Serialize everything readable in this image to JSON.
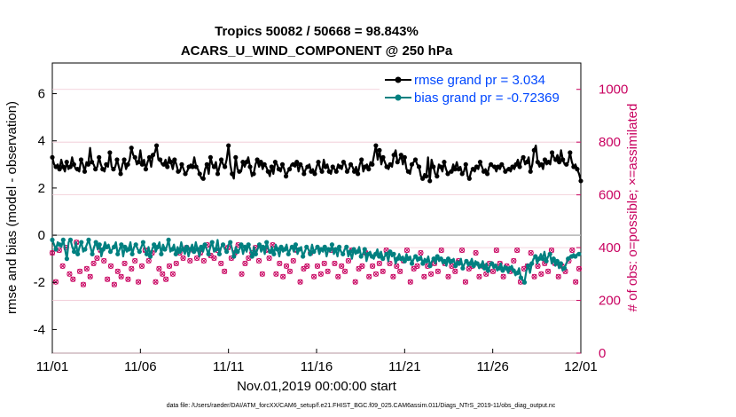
{
  "chart_data": {
    "type": "line",
    "title_line1": "Tropics 50082 / 50668 = 98.843%",
    "title_line2": "ACARS_U_WIND_COMPONENT @ 250 hPa",
    "xlabel": "Nov.01,2019 00:00:00 start",
    "ylabel_left": "rmse and bias (model - observation)",
    "ylabel_right": "# of obs: o=possible; ×=assimilated",
    "footnote": "data file: /Users/raeder/DAI/ATM_forcXX/CAM6_setup/f.e21.FHIST_BGC.f09_025.CAM6assim.011/Diags_NTrS_2019-11/obs_diag_output.nc",
    "x_ticks": [
      "11/01",
      "11/06",
      "11/11",
      "11/16",
      "11/21",
      "11/26",
      "12/01"
    ],
    "x_range_days": [
      0,
      30
    ],
    "y_left_ticks": [
      "-4",
      "-2",
      "0",
      "2",
      "4",
      "6"
    ],
    "y_left_range": [
      -5,
      7.3
    ],
    "y_right_ticks": [
      "0",
      "200",
      "400",
      "600",
      "800",
      "1000"
    ],
    "y_right_range": [
      0,
      1100
    ],
    "colors": {
      "rmse": "#000000",
      "bias": "#008080",
      "obs": "#c8005f",
      "legend_text": "#0047ff",
      "zero_line": "#b4b4b4",
      "grid": "#f0c8d4"
    },
    "series": [
      {
        "name": "rmse grand pr = 3.034",
        "key": "rmse",
        "values": [
          3.3,
          3.0,
          2.9,
          3.0,
          2.8,
          3.2,
          2.9,
          2.7,
          3.1,
          2.8,
          2.9,
          3.3,
          3.0,
          2.8,
          2.8,
          2.7,
          3.2,
          3.0,
          2.7,
          3.1,
          3.0,
          3.7,
          3.1,
          3.0,
          2.8,
          2.9,
          3.3,
          3.0,
          2.8,
          2.7,
          3.0,
          2.9,
          3.5,
          2.9,
          2.8,
          2.9,
          3.2,
          2.9,
          2.6,
          3.0,
          3.2,
          2.8,
          3.0,
          3.2,
          3.7,
          3.4,
          3.3,
          3.0,
          3.1,
          3.6,
          3.0,
          3.2,
          2.8,
          3.1,
          3.3,
          2.9,
          3.4,
          3.5,
          3.8,
          3.2,
          3.2,
          3.0,
          3.0,
          3.2,
          2.9,
          3.3,
          3.1,
          2.8,
          3.2,
          3.0,
          2.7,
          2.7,
          3.0,
          2.8,
          2.6,
          2.7,
          2.9,
          3.0,
          2.9,
          3.3,
          2.9,
          2.8,
          2.6,
          2.4,
          2.4,
          2.8,
          3.0,
          2.6,
          3.3,
          3.0,
          2.9,
          3.1,
          2.6,
          2.9,
          3.2,
          3.0,
          2.9,
          3.2,
          3.8,
          3.0,
          2.6,
          2.4,
          3.3,
          2.8,
          2.7,
          2.7,
          3.1,
          2.9,
          3.1,
          3.3,
          2.9,
          2.5,
          2.6,
          3.0,
          3.2,
          2.9,
          3.1,
          2.8,
          3.0,
          2.9,
          2.7,
          2.5,
          2.9,
          2.6,
          3.1,
          3.0,
          2.8,
          2.7,
          3.0,
          2.8,
          2.5,
          2.7,
          2.8,
          3.0,
          3.0,
          2.9,
          3.1,
          2.7,
          3.0,
          2.9,
          2.6,
          2.8,
          2.9,
          3.0,
          2.7,
          2.8,
          2.6,
          2.9,
          3.1,
          2.8,
          2.7,
          3.2,
          2.9,
          3.0,
          2.7,
          2.6,
          2.9,
          2.8,
          2.7,
          3.0,
          2.9,
          2.8,
          3.1,
          3.0,
          2.7,
          2.8,
          3.0,
          2.9,
          2.7,
          2.9,
          2.6,
          3.0,
          3.2,
          2.7,
          2.9,
          3.0,
          2.8,
          3.1,
          3.0,
          3.4,
          3.8,
          3.2,
          3.6,
          3.0,
          3.3,
          3.1,
          2.9,
          2.8,
          3.0,
          2.9,
          3.4,
          3.6,
          3.1,
          3.2,
          3.4,
          3.0,
          3.3,
          2.8,
          2.7,
          2.6,
          3.0,
          3.1,
          3.2,
          3.0,
          2.9,
          2.5,
          2.4,
          2.6,
          2.5,
          3.3,
          2.3,
          3.2,
          2.9,
          2.6,
          2.5,
          3.0,
          2.9,
          2.7,
          3.1,
          2.8,
          2.6,
          2.7,
          2.7,
          3.0,
          2.8,
          3.1,
          2.8,
          2.9,
          2.6,
          2.7,
          3.0,
          2.5,
          2.4,
          2.7,
          2.8,
          2.7,
          2.9,
          2.8,
          3.1,
          2.9,
          2.7,
          2.8,
          2.6,
          2.9,
          3.0,
          2.9,
          2.9,
          2.7,
          2.9,
          2.8,
          3.0,
          2.9,
          2.7,
          2.8,
          2.8,
          2.7,
          2.9,
          2.8,
          3.0,
          3.2,
          2.9,
          3.2,
          3.3,
          3.0,
          3.1,
          3.3,
          2.7,
          3.0,
          3.6,
          3.8,
          3.1,
          2.9,
          3.0,
          2.8,
          3.2,
          3.0,
          3.1,
          3.0,
          3.5,
          3.3,
          3.2,
          3.4,
          3.1,
          3.6,
          3.2,
          3.0,
          3.0,
          3.1,
          3.5,
          3.1,
          2.9,
          3.0,
          2.8,
          2.6,
          2.3
        ]
      },
      {
        "name": "bias grand pr = -0.72369",
        "key": "bias",
        "values": [
          -0.2,
          -0.4,
          -0.6,
          -0.3,
          -0.4,
          -0.5,
          -0.2,
          -0.6,
          -1.0,
          -0.3,
          -0.2,
          -0.5,
          -0.7,
          -0.3,
          -0.8,
          -0.5,
          -0.3,
          -0.7,
          -0.6,
          -0.4,
          -0.2,
          -0.5,
          -0.8,
          -0.5,
          -0.3,
          -0.6,
          -0.4,
          -0.9,
          -0.6,
          -0.3,
          -0.5,
          -0.4,
          -0.7,
          -0.6,
          -0.5,
          -0.3,
          -0.8,
          -0.6,
          -0.4,
          -0.9,
          -0.5,
          -0.7,
          -0.6,
          -0.3,
          -0.8,
          -0.5,
          -0.4,
          -0.6,
          -0.7,
          -0.5,
          -0.3,
          -0.6,
          -0.8,
          -0.5,
          -0.9,
          -0.6,
          -0.4,
          -0.7,
          -0.5,
          -0.3,
          -0.8,
          -0.4,
          -0.6,
          -0.5,
          -0.2,
          -0.7,
          -0.6,
          -0.4,
          -0.8,
          -0.5,
          -0.7,
          -0.3,
          -0.6,
          -0.8,
          -0.5,
          -0.9,
          -0.6,
          -0.4,
          -0.7,
          -0.3,
          -0.6,
          -0.9,
          -0.5,
          -0.7,
          -0.4,
          -0.6,
          -0.8,
          -0.5,
          -0.3,
          -0.7,
          -0.6,
          -0.2,
          -0.8,
          -0.5,
          -0.4,
          -0.6,
          -0.7,
          -0.4,
          -0.3,
          -0.6,
          -0.9,
          -0.5,
          -0.7,
          -0.6,
          -0.4,
          -0.8,
          -0.5,
          -0.7,
          -0.4,
          -0.6,
          -0.9,
          -0.5,
          -0.8,
          -0.6,
          -0.4,
          -0.7,
          -0.5,
          -0.8,
          -0.3,
          -0.6,
          -0.7,
          -0.5,
          -0.8,
          -0.4,
          -0.6,
          -0.9,
          -0.5,
          -0.7,
          -0.6,
          -0.4,
          -0.8,
          -0.6,
          -0.5,
          -0.7,
          -0.4,
          -0.8,
          -0.6,
          -0.5,
          -0.9,
          -0.7,
          -0.5,
          -0.6,
          -0.8,
          -0.4,
          -0.7,
          -0.6,
          -0.5,
          -0.8,
          -0.6,
          -0.7,
          -0.5,
          -0.9,
          -0.6,
          -0.7,
          -0.4,
          -0.8,
          -0.6,
          -0.9,
          -0.5,
          -0.7,
          -0.8,
          -0.6,
          -0.5,
          -0.9,
          -0.7,
          -1.0,
          -0.6,
          -0.8,
          -0.7,
          -0.5,
          -0.9,
          -0.8,
          -0.6,
          -1.1,
          -0.8,
          -0.7,
          -0.9,
          -1.0,
          -0.8,
          -0.6,
          -0.9,
          -0.7,
          -1.0,
          -0.9,
          -0.8,
          -1.1,
          -0.7,
          -0.9,
          -0.8,
          -1.2,
          -1.0,
          -0.8,
          -1.0,
          -0.9,
          -1.1,
          -0.8,
          -1.0,
          -0.9,
          -1.2,
          -1.0,
          -0.9,
          -1.1,
          -1.0,
          -0.9,
          -1.2,
          -1.0,
          -1.1,
          -0.9,
          -1.3,
          -1.1,
          -1.0,
          -1.2,
          -0.9,
          -1.1,
          -1.0,
          -1.2,
          -1.1,
          -1.3,
          -1.0,
          -1.2,
          -1.1,
          -1.0,
          -1.3,
          -1.1,
          -1.2,
          -1.0,
          -1.4,
          -1.2,
          -1.1,
          -1.3,
          -1.2,
          -1.0,
          -1.3,
          -1.1,
          -1.2,
          -1.4,
          -1.3,
          -1.1,
          -1.4,
          -1.2,
          -1.5,
          -1.3,
          -1.2,
          -1.4,
          -1.3,
          -1.5,
          -1.4,
          -1.2,
          -1.5,
          -1.3,
          -1.4,
          -1.6,
          -1.4,
          -1.3,
          -1.5,
          -1.7,
          -1.6,
          -1.4,
          -1.8,
          -1.9,
          -2.0,
          -1.5,
          -1.3,
          -1.6,
          -1.2,
          -1.0,
          -0.9,
          -1.2,
          -1.0,
          -0.8,
          -1.0,
          -0.7,
          -1.1,
          -0.9,
          -0.8,
          -1.2,
          -1.0,
          -1.3,
          -1.1,
          -1.4,
          -1.2,
          -1.5,
          -1.4,
          -1.2,
          -1.0,
          -0.9,
          -0.9,
          -0.8,
          -0.9,
          -0.8,
          -0.8,
          -0.8
        ]
      },
      {
        "name": "# of obs possible",
        "key": "obs",
        "values": [
          380,
          410,
          270,
          350,
          390,
          360,
          330,
          250,
          400,
          370,
          300,
          340,
          280,
          360,
          420,
          350,
          310,
          390,
          260,
          370,
          320,
          400,
          290,
          380,
          340,
          270,
          360,
          310,
          390,
          300,
          350,
          420,
          280,
          370,
          330,
          400,
          260,
          350,
          310,
          390,
          290,
          370,
          340,
          400,
          280,
          360,
          320,
          380,
          350,
          300,
          270,
          410,
          330,
          360,
          390,
          290,
          350,
          310,
          380,
          340,
          270,
          400,
          320,
          360,
          300,
          390,
          280,
          350,
          330,
          410,
          300,
          370,
          340,
          260,
          380,
          310,
          360,
          290,
          400,
          330,
          350,
          310,
          390,
          270,
          360,
          340,
          380,
          300,
          350,
          320,
          410,
          290,
          370,
          330,
          360,
          300,
          390,
          280,
          340,
          370,
          310,
          350,
          400,
          300,
          360,
          270,
          380,
          320,
          410,
          350,
          300,
          390,
          340,
          270,
          360,
          310,
          380,
          330,
          400,
          290,
          350,
          370,
          300,
          340,
          390,
          280,
          360,
          320,
          410,
          350,
          300,
          380,
          340,
          370,
          290,
          400,
          330,
          360,
          310,
          380,
          350,
          300,
          390,
          340,
          270,
          360,
          320,
          400,
          330,
          300,
          380,
          350,
          290,
          370,
          330,
          410,
          300,
          360,
          340,
          380,
          310,
          350,
          390,
          300,
          340,
          370,
          290,
          400,
          330,
          360,
          310,
          380,
          350,
          300,
          390,
          340,
          270,
          360,
          320,
          400,
          330,
          300,
          380,
          350,
          290,
          370,
          330,
          410,
          300,
          360,
          340,
          380,
          310,
          350,
          390,
          300,
          340,
          370,
          290,
          400,
          330,
          360,
          310,
          380,
          350,
          300,
          390,
          340,
          270,
          360,
          320,
          400,
          330,
          300,
          380,
          350,
          290,
          370,
          330,
          410,
          300,
          360,
          340,
          380,
          310,
          350,
          390,
          300,
          340,
          370,
          290,
          400,
          330,
          360,
          310,
          380,
          350,
          300,
          390,
          340,
          270,
          360,
          320,
          400,
          330,
          300,
          380,
          350,
          290,
          370,
          330,
          410,
          300,
          360,
          340,
          380,
          310,
          350,
          390,
          300,
          340,
          370,
          290,
          400,
          330,
          360,
          310,
          380,
          350,
          300,
          390,
          340,
          270,
          360,
          320,
          400,
          330,
          300,
          380,
          350,
          290,
          370,
          330,
          410,
          300,
          360,
          340,
          380,
          310,
          350,
          390,
          300,
          340,
          370,
          290,
          400,
          330,
          360,
          310,
          380,
          350,
          300,
          390,
          340,
          270,
          360,
          320,
          400
        ]
      }
    ]
  }
}
